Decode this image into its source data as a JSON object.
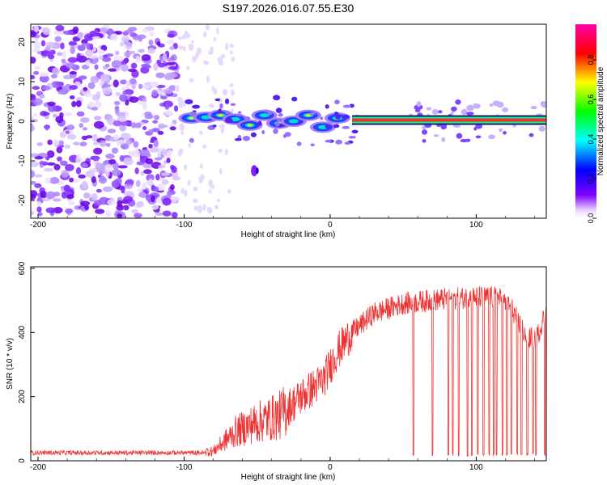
{
  "chart_data": [
    {
      "type": "heatmap",
      "title": "S197.2026.016.07.55.E30",
      "xlabel": "Height of straight line (km)",
      "ylabel": "Frequency (Hz)",
      "xlim": [
        -205,
        148
      ],
      "ylim": [
        -24.5,
        24.5
      ],
      "xticks": [
        -200,
        -100,
        0,
        100
      ],
      "yticks": [
        -20,
        -10,
        0,
        10,
        20
      ],
      "colorbar": {
        "label": "Normalized spectral amplitude",
        "range": [
          0.0,
          0.98
        ],
        "ticks": [
          "0.0",
          "0.2",
          "0.4",
          "0.6",
          "0.8"
        ],
        "colormap": [
          "#ffffff",
          "#7f00ff",
          "#0000ff",
          "#00ffff",
          "#00ff00",
          "#ffff00",
          "#ff0000",
          "#ff00ff"
        ]
      },
      "signal": {
        "freq_hz": 0.3,
        "strong_from_km": 15,
        "strong_to_km": 148,
        "segments": [
          {
            "x": -95,
            "y": 0.8
          },
          {
            "x": -85,
            "y": 1.0
          },
          {
            "x": -75,
            "y": 1.5
          },
          {
            "x": -65,
            "y": 0.5
          },
          {
            "x": -55,
            "y": -1.0
          },
          {
            "x": -45,
            "y": 1.5
          },
          {
            "x": -35,
            "y": -0.5
          },
          {
            "x": -25,
            "y": 0.0
          },
          {
            "x": -15,
            "y": 1.5
          },
          {
            "x": -5,
            "y": -1.5
          },
          {
            "x": 5,
            "y": 0.8
          }
        ]
      }
    },
    {
      "type": "line",
      "xlabel": "Height of straight line (km)",
      "ylabel": "SNR (10 * v/v)",
      "xlim": [
        -205,
        148
      ],
      "ylim": [
        0,
        605
      ],
      "xticks": [
        -200,
        -100,
        0,
        100
      ],
      "yticks": [
        0,
        200,
        400,
        600
      ],
      "color": "#ee3333",
      "trend": [
        {
          "x": -205,
          "y": 20
        },
        {
          "x": -100,
          "y": 25
        },
        {
          "x": -80,
          "y": 30
        },
        {
          "x": -65,
          "y": 90
        },
        {
          "x": -50,
          "y": 120
        },
        {
          "x": -35,
          "y": 140
        },
        {
          "x": -20,
          "y": 200
        },
        {
          "x": -5,
          "y": 250
        },
        {
          "x": 5,
          "y": 340
        },
        {
          "x": 15,
          "y": 400
        },
        {
          "x": 30,
          "y": 460
        },
        {
          "x": 50,
          "y": 490
        },
        {
          "x": 80,
          "y": 505
        },
        {
          "x": 100,
          "y": 510
        },
        {
          "x": 115,
          "y": 510
        },
        {
          "x": 125,
          "y": 470
        },
        {
          "x": 135,
          "y": 380
        },
        {
          "x": 142,
          "y": 390
        },
        {
          "x": 148,
          "y": 470
        }
      ],
      "dropouts_km": [
        57,
        70,
        81,
        84,
        88,
        94,
        97,
        101,
        105,
        109,
        112,
        114,
        118,
        121,
        124,
        128,
        131,
        135,
        139,
        141,
        147
      ]
    }
  ]
}
